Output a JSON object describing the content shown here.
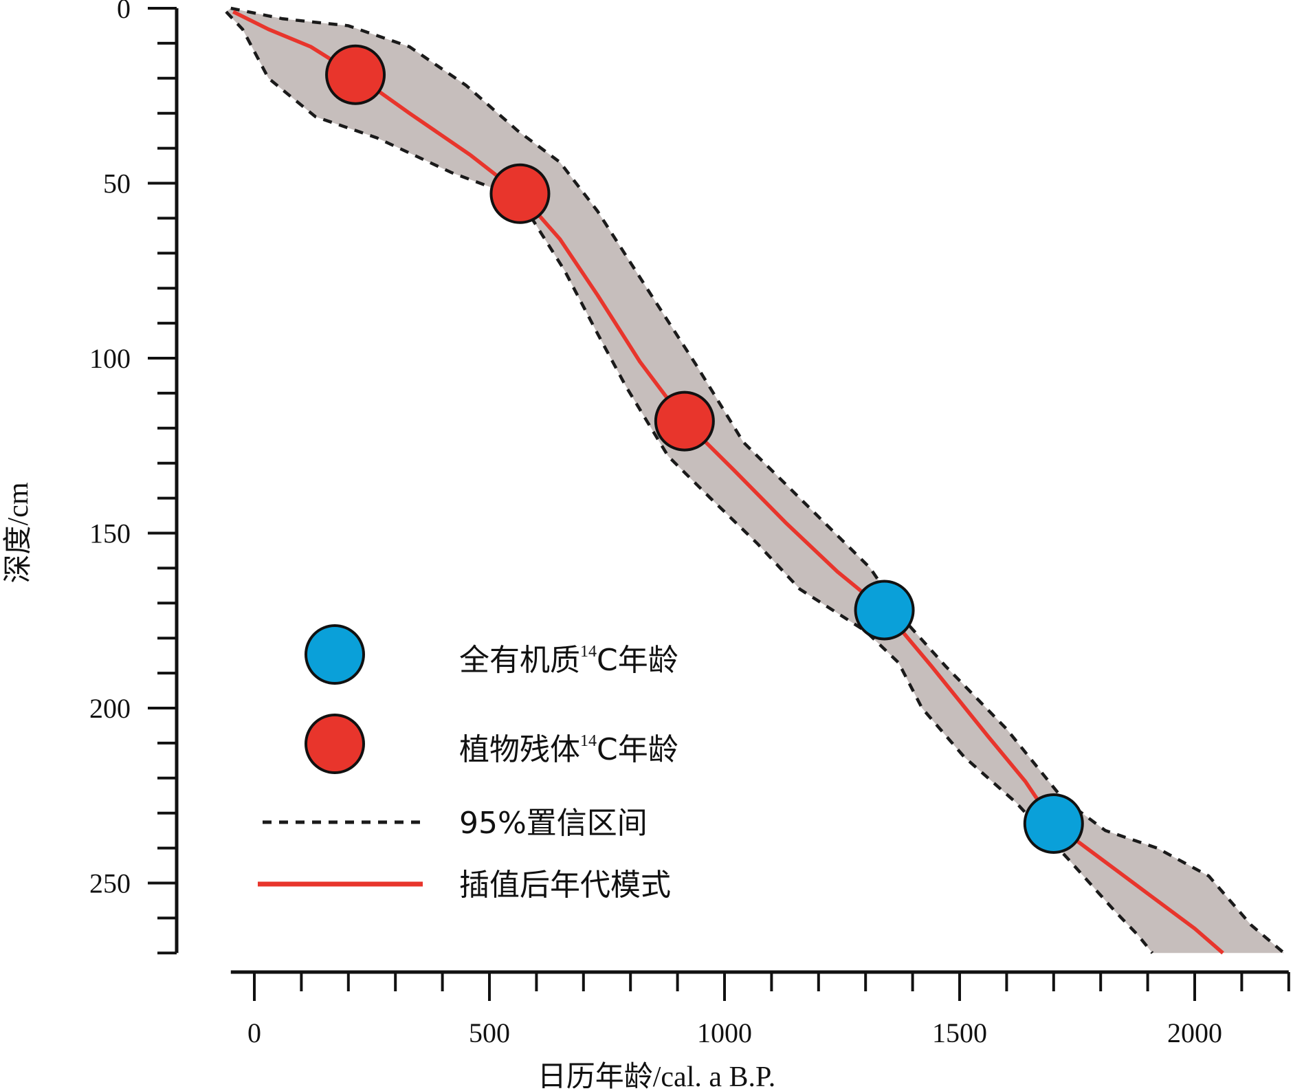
{
  "chart_data": {
    "type": "scatter",
    "xlabel": "日历年龄/cal. a B.P.",
    "ylabel": "深度/cm",
    "xlim": [
      -50,
      2200
    ],
    "ylim": [
      0,
      270
    ],
    "y_inverted": true,
    "x_ticks": [
      0,
      500,
      1000,
      1500,
      2000
    ],
    "y_ticks": [
      0,
      50,
      100,
      150,
      200,
      250
    ],
    "grid": false,
    "legend_position": "lower-left",
    "colors": {
      "confidence_fill": "#c6bebc",
      "age_model_line": "#e8352c",
      "whole_organic": "#0aa0d9",
      "plant_remains": "#e8352c",
      "outline": "#111111"
    },
    "series": [
      {
        "name": "全有机质14C年龄",
        "legend_main": "全有机质",
        "legend_sup": "14",
        "legend_tail": "C年龄",
        "kind": "points",
        "points": [
          {
            "x": 1340,
            "y": 172
          },
          {
            "x": 1700,
            "y": 233
          }
        ]
      },
      {
        "name": "植物残体14C年龄",
        "legend_main": "植物残体",
        "legend_sup": "14",
        "legend_tail": "C年龄",
        "kind": "points",
        "points": [
          {
            "x": 215,
            "y": 19
          },
          {
            "x": 565,
            "y": 53
          },
          {
            "x": 915,
            "y": 118
          }
        ]
      },
      {
        "name": "95%置信区间",
        "kind": "band",
        "left_bound": [
          {
            "x": -60,
            "y": 1
          },
          {
            "x": -25,
            "y": 6
          },
          {
            "x": 30,
            "y": 20
          },
          {
            "x": 130,
            "y": 31
          },
          {
            "x": 260,
            "y": 37
          },
          {
            "x": 420,
            "y": 47
          },
          {
            "x": 520,
            "y": 52
          },
          {
            "x": 590,
            "y": 60
          },
          {
            "x": 660,
            "y": 75
          },
          {
            "x": 730,
            "y": 93
          },
          {
            "x": 790,
            "y": 108
          },
          {
            "x": 880,
            "y": 128
          },
          {
            "x": 970,
            "y": 140
          },
          {
            "x": 1070,
            "y": 153
          },
          {
            "x": 1160,
            "y": 166
          },
          {
            "x": 1300,
            "y": 178
          },
          {
            "x": 1370,
            "y": 187
          },
          {
            "x": 1420,
            "y": 200
          },
          {
            "x": 1510,
            "y": 214
          },
          {
            "x": 1620,
            "y": 227
          },
          {
            "x": 1730,
            "y": 243
          },
          {
            "x": 1830,
            "y": 258
          },
          {
            "x": 1880,
            "y": 265
          },
          {
            "x": 1910,
            "y": 270
          }
        ],
        "right_bound": [
          {
            "x": -50,
            "y": 0
          },
          {
            "x": 60,
            "y": 3
          },
          {
            "x": 200,
            "y": 5
          },
          {
            "x": 330,
            "y": 11
          },
          {
            "x": 450,
            "y": 22
          },
          {
            "x": 560,
            "y": 35
          },
          {
            "x": 650,
            "y": 44
          },
          {
            "x": 730,
            "y": 58
          },
          {
            "x": 830,
            "y": 79
          },
          {
            "x": 940,
            "y": 102
          },
          {
            "x": 1040,
            "y": 124
          },
          {
            "x": 1160,
            "y": 140
          },
          {
            "x": 1310,
            "y": 160
          },
          {
            "x": 1390,
            "y": 176
          },
          {
            "x": 1470,
            "y": 188
          },
          {
            "x": 1600,
            "y": 206
          },
          {
            "x": 1720,
            "y": 226
          },
          {
            "x": 1810,
            "y": 235
          },
          {
            "x": 1920,
            "y": 240
          },
          {
            "x": 2030,
            "y": 248
          },
          {
            "x": 2120,
            "y": 262
          },
          {
            "x": 2190,
            "y": 270
          }
        ]
      },
      {
        "name": "插值后年代模式",
        "kind": "line",
        "points": [
          {
            "x": -45,
            "y": 1
          },
          {
            "x": 30,
            "y": 6
          },
          {
            "x": 120,
            "y": 11
          },
          {
            "x": 215,
            "y": 19
          },
          {
            "x": 330,
            "y": 30
          },
          {
            "x": 460,
            "y": 42
          },
          {
            "x": 565,
            "y": 53
          },
          {
            "x": 650,
            "y": 66
          },
          {
            "x": 730,
            "y": 82
          },
          {
            "x": 820,
            "y": 101
          },
          {
            "x": 915,
            "y": 118
          },
          {
            "x": 1020,
            "y": 132
          },
          {
            "x": 1130,
            "y": 147
          },
          {
            "x": 1240,
            "y": 161
          },
          {
            "x": 1340,
            "y": 172
          },
          {
            "x": 1440,
            "y": 188
          },
          {
            "x": 1560,
            "y": 208
          },
          {
            "x": 1640,
            "y": 221
          },
          {
            "x": 1700,
            "y": 233
          },
          {
            "x": 1800,
            "y": 243
          },
          {
            "x": 1900,
            "y": 253
          },
          {
            "x": 2000,
            "y": 263
          },
          {
            "x": 2060,
            "y": 270
          }
        ]
      }
    ]
  }
}
